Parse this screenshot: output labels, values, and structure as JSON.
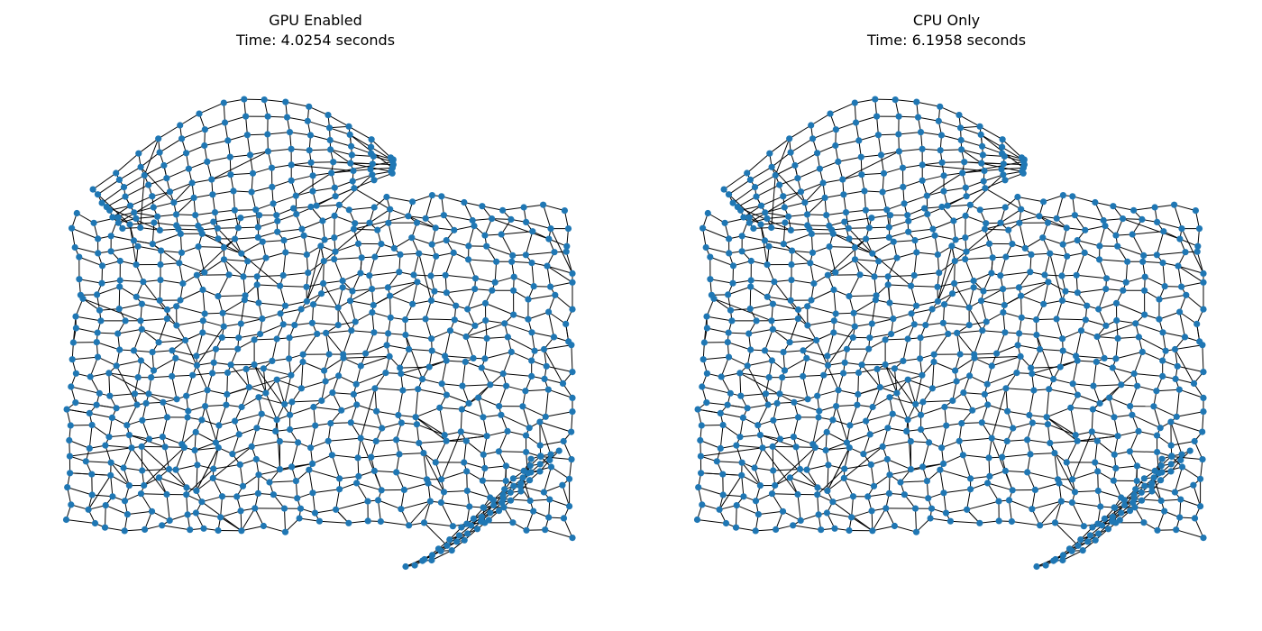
{
  "panels": [
    {
      "label": "GPU Enabled",
      "time_text": "Time: 4.0254 seconds"
    },
    {
      "label": "CPU Only",
      "time_text": "Time: 6.1958 seconds"
    }
  ],
  "style": {
    "node_color": "#1f77b4",
    "edge_color": "#000000"
  }
}
